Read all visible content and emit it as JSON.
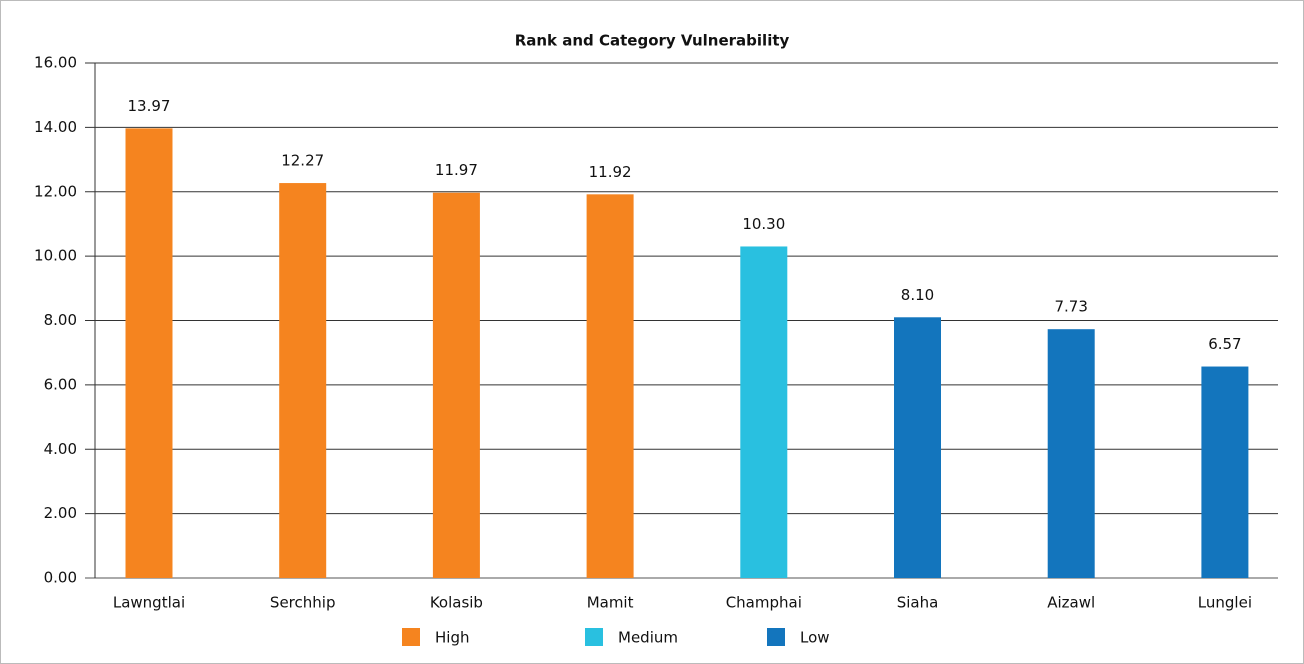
{
  "chart_data": {
    "type": "bar",
    "title": "Rank and Category Vulnerability",
    "categories": [
      "Lawngtlai",
      "Serchhip",
      "Kolasib",
      "Mamit",
      "Champhai",
      "Siaha",
      "Aizawl",
      "Lunglei"
    ],
    "series": [
      {
        "name": "High",
        "color": "#f5841f",
        "values": [
          13.97,
          12.27,
          11.97,
          11.92,
          null,
          null,
          null,
          null
        ],
        "value_labels": [
          "13.97",
          "12.27",
          "11.97",
          "11.92",
          null,
          null,
          null,
          null
        ]
      },
      {
        "name": "Medium",
        "color": "#29c0e0",
        "values": [
          null,
          null,
          null,
          null,
          10.3,
          null,
          null,
          null
        ],
        "value_labels": [
          null,
          null,
          null,
          null,
          "10.30",
          null,
          null,
          null
        ]
      },
      {
        "name": "Low",
        "color": "#1375bd",
        "values": [
          null,
          null,
          null,
          null,
          null,
          8.1,
          7.73,
          6.57
        ],
        "value_labels": [
          null,
          null,
          null,
          null,
          null,
          "8.10",
          "7.73",
          "6.57"
        ]
      }
    ],
    "ylim": [
      0,
      16
    ],
    "yticks": [
      {
        "value": 0,
        "label": "0.00"
      },
      {
        "value": 2,
        "label": "2.00"
      },
      {
        "value": 4,
        "label": "4.00"
      },
      {
        "value": 6,
        "label": "6.00"
      },
      {
        "value": 8,
        "label": "8.00"
      },
      {
        "value": 10,
        "label": "10.00"
      },
      {
        "value": 12,
        "label": "12.00"
      },
      {
        "value": 14,
        "label": "14.00"
      },
      {
        "value": 16,
        "label": "16.00"
      }
    ],
    "grid": true,
    "legend": "bottom"
  }
}
